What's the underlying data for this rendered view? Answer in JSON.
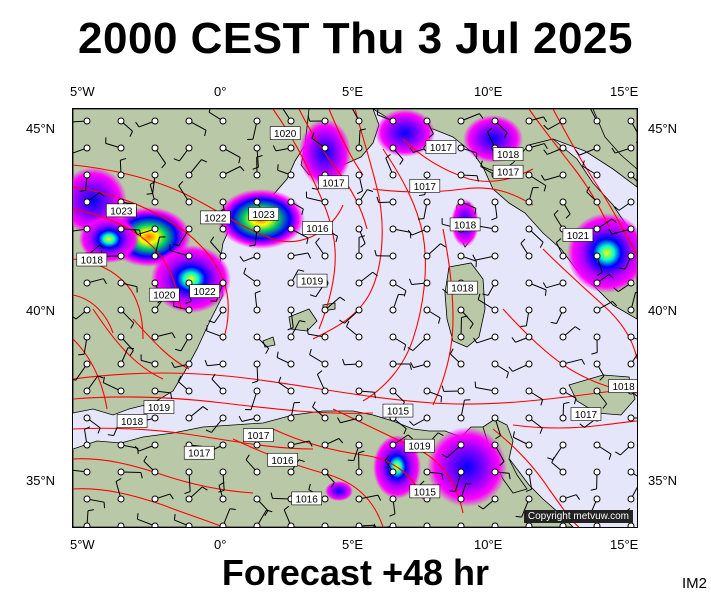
{
  "title": "2000 CEST Thu 3 Jul 2025",
  "subtitle": "Forecast +48 hr",
  "image_code": "IM2",
  "copyright": "Copyright metvuw.com",
  "lon_labels": [
    "5°W",
    "0°",
    "5°E",
    "10°E",
    "15°E"
  ],
  "lat_labels": [
    "45°N",
    "40°N",
    "35°N"
  ],
  "colors": {
    "sea": "#e6e6fa",
    "land": "#b9c9a7",
    "isobar": "#ff0000",
    "wind_barb": "#000000",
    "rain_high": "#ff00ff",
    "rain_core": "#0000ff"
  },
  "isobar_labels": [
    {
      "text": "1020",
      "lon": 2.4,
      "lat": 44.8
    },
    {
      "text": "1017",
      "lon": 4.2,
      "lat": 43.4
    },
    {
      "text": "1016",
      "lon": 3.6,
      "lat": 42.1
    },
    {
      "text": "1017",
      "lon": 7.6,
      "lat": 43.3
    },
    {
      "text": "1017",
      "lon": 8.2,
      "lat": 44.4
    },
    {
      "text": "1017",
      "lon": 10.7,
      "lat": 43.7
    },
    {
      "text": "1018",
      "lon": 10.7,
      "lat": 44.2
    },
    {
      "text": "1023",
      "lon": -3.7,
      "lat": 42.6
    },
    {
      "text": "1022",
      "lon": -0.2,
      "lat": 42.4
    },
    {
      "text": "1023",
      "lon": 1.6,
      "lat": 42.5
    },
    {
      "text": "1018",
      "lon": 9.1,
      "lat": 42.2
    },
    {
      "text": "1021",
      "lon": 13.3,
      "lat": 41.9
    },
    {
      "text": "1018",
      "lon": -4.8,
      "lat": 41.2
    },
    {
      "text": "1019",
      "lon": 3.4,
      "lat": 40.6
    },
    {
      "text": "1018",
      "lon": 9.0,
      "lat": 40.4
    },
    {
      "text": "1020",
      "lon": -2.1,
      "lat": 40.2
    },
    {
      "text": "1022",
      "lon": -0.6,
      "lat": 40.3
    },
    {
      "text": "1019",
      "lon": -2.3,
      "lat": 37.0
    },
    {
      "text": "1018",
      "lon": -3.3,
      "lat": 36.6
    },
    {
      "text": "1015",
      "lon": 6.6,
      "lat": 36.9
    },
    {
      "text": "1018",
      "lon": 15.0,
      "lat": 37.6
    },
    {
      "text": "1017",
      "lon": 13.6,
      "lat": 36.8
    },
    {
      "text": "1017",
      "lon": 1.4,
      "lat": 36.2
    },
    {
      "text": "1017",
      "lon": -0.8,
      "lat": 35.7
    },
    {
      "text": "1016",
      "lon": 2.3,
      "lat": 35.5
    },
    {
      "text": "1019",
      "lon": 7.4,
      "lat": 35.9
    },
    {
      "text": "1016",
      "lon": 3.2,
      "lat": 34.4
    },
    {
      "text": "1015",
      "lon": 7.6,
      "lat": 34.6
    }
  ]
}
